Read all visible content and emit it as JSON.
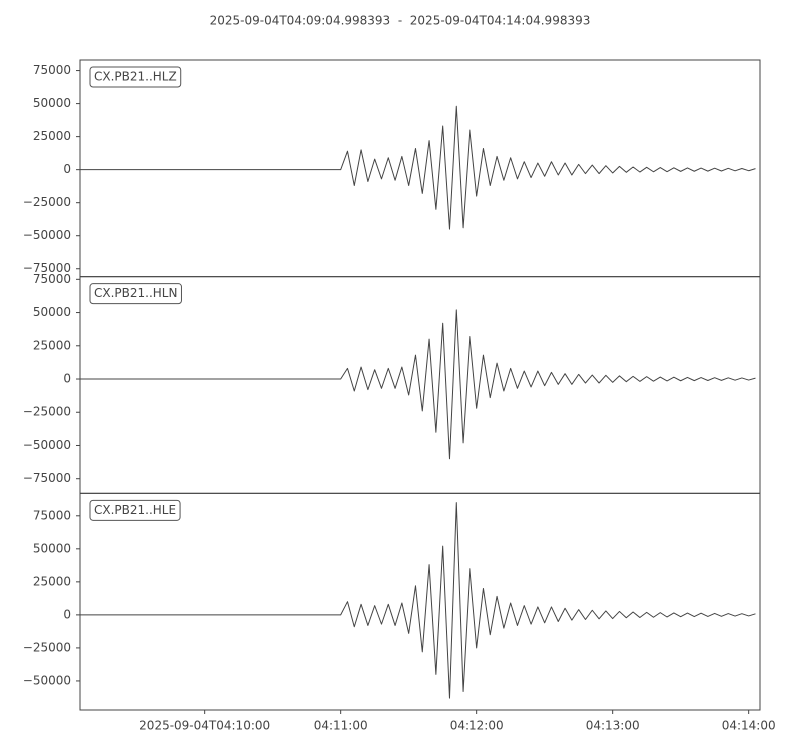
{
  "chart_data": [
    {
      "type": "line",
      "title": "2025-09-04T04:09:04.998393  -  2025-09-04T04:14:04.998393",
      "label": "CX.PB21..HLZ",
      "xlim": [
        "2025-09-04T04:09:04.998393",
        "2025-09-04T04:14:04.998393"
      ],
      "ylim": [
        -81000,
        83000
      ],
      "yticks": [
        {
          "value": -75000,
          "label": "−75000"
        },
        {
          "value": -50000,
          "label": "−50000"
        },
        {
          "value": -25000,
          "label": "−25000"
        },
        0,
        25000,
        50000,
        75000
      ],
      "color": "#444444",
      "x": [
        "04:09:05",
        "04:11:00",
        "04:11:03",
        "04:11:06",
        "04:11:09",
        "04:11:12",
        "04:11:15",
        "04:11:18",
        "04:11:21",
        "04:11:24",
        "04:11:27",
        "04:11:30",
        "04:11:33",
        "04:11:36",
        "04:11:39",
        "04:11:42",
        "04:11:45",
        "04:11:48",
        "04:11:51",
        "04:11:54",
        "04:11:57",
        "04:12:00",
        "04:12:03",
        "04:12:06",
        "04:12:09",
        "04:12:12",
        "04:12:15",
        "04:12:18",
        "04:12:21",
        "04:12:24",
        "04:12:27",
        "04:12:30",
        "04:12:33",
        "04:12:36",
        "04:12:39",
        "04:12:42",
        "04:12:45",
        "04:12:48",
        "04:12:51",
        "04:12:54",
        "04:12:57",
        "04:13:00",
        "04:13:03",
        "04:13:06",
        "04:13:09",
        "04:13:12",
        "04:13:15",
        "04:13:18",
        "04:13:21",
        "04:13:24",
        "04:13:27",
        "04:13:30",
        "04:13:33",
        "04:13:36",
        "04:13:39",
        "04:13:42",
        "04:13:45",
        "04:13:48",
        "04:13:51",
        "04:13:54",
        "04:13:57",
        "04:14:00",
        "04:14:03"
      ],
      "values": [
        0,
        0,
        14000,
        -12000,
        15000,
        -9000,
        8000,
        -7000,
        9000,
        -8000,
        10000,
        -12000,
        16000,
        -18000,
        22000,
        -30000,
        33000,
        -45000,
        48000,
        -44000,
        30000,
        -20000,
        16000,
        -12000,
        10000,
        -8000,
        9000,
        -7000,
        6000,
        -6000,
        5000,
        -5000,
        6000,
        -4000,
        5000,
        -4000,
        4000,
        -3000,
        3500,
        -3000,
        3000,
        -2500,
        2500,
        -2000,
        2000,
        -1800,
        1800,
        -1600,
        1600,
        -1500,
        1400,
        -1300,
        1300,
        -1200,
        1200,
        -1100,
        1100,
        -1000,
        1000,
        -900,
        900,
        -800,
        800
      ]
    },
    {
      "type": "line",
      "label": "CX.PB21..HLN",
      "xlim": [
        "2025-09-04T04:09:04.998393",
        "2025-09-04T04:14:04.998393"
      ],
      "ylim": [
        -86000,
        77000
      ],
      "yticks": [
        {
          "value": -75000,
          "label": "−75000"
        },
        {
          "value": -50000,
          "label": "−50000"
        },
        {
          "value": -25000,
          "label": "−25000"
        },
        0,
        25000,
        50000,
        75000
      ],
      "color": "#444444",
      "x": [
        "04:09:05",
        "04:11:00",
        "04:11:03",
        "04:11:06",
        "04:11:09",
        "04:11:12",
        "04:11:15",
        "04:11:18",
        "04:11:21",
        "04:11:24",
        "04:11:27",
        "04:11:30",
        "04:11:33",
        "04:11:36",
        "04:11:39",
        "04:11:42",
        "04:11:45",
        "04:11:48",
        "04:11:51",
        "04:11:54",
        "04:11:57",
        "04:12:00",
        "04:12:03",
        "04:12:06",
        "04:12:09",
        "04:12:12",
        "04:12:15",
        "04:12:18",
        "04:12:21",
        "04:12:24",
        "04:12:27",
        "04:12:30",
        "04:12:33",
        "04:12:36",
        "04:12:39",
        "04:12:42",
        "04:12:45",
        "04:12:48",
        "04:12:51",
        "04:12:54",
        "04:12:57",
        "04:13:00",
        "04:13:03",
        "04:13:06",
        "04:13:09",
        "04:13:12",
        "04:13:15",
        "04:13:18",
        "04:13:21",
        "04:13:24",
        "04:13:27",
        "04:13:30",
        "04:13:33",
        "04:13:36",
        "04:13:39",
        "04:13:42",
        "04:13:45",
        "04:13:48",
        "04:13:51",
        "04:13:54",
        "04:13:57",
        "04:14:00",
        "04:14:03"
      ],
      "values": [
        0,
        0,
        8000,
        -9000,
        9000,
        -8000,
        7000,
        -7000,
        8000,
        -7000,
        9000,
        -12000,
        18000,
        -24000,
        30000,
        -40000,
        42000,
        -60000,
        52000,
        -48000,
        32000,
        -22000,
        18000,
        -14000,
        12000,
        -9000,
        8000,
        -7000,
        6000,
        -6000,
        6000,
        -5000,
        5000,
        -4000,
        4000,
        -4000,
        3500,
        -3000,
        3000,
        -3000,
        2800,
        -2500,
        2400,
        -2000,
        2000,
        -1800,
        1800,
        -1600,
        1500,
        -1400,
        1400,
        -1300,
        1200,
        -1200,
        1100,
        -1100,
        1000,
        -1000,
        900,
        -900,
        800,
        -800,
        700
      ]
    },
    {
      "type": "line",
      "label": "CX.PB21..HLE",
      "xlim": [
        "2025-09-04T04:09:04.998393",
        "2025-09-04T04:14:04.998393"
      ],
      "ylim": [
        -72000,
        92000
      ],
      "yticks": [
        {
          "value": -50000,
          "label": "−50000"
        },
        {
          "value": -25000,
          "label": "−25000"
        },
        0,
        25000,
        50000,
        75000
      ],
      "xticks": [
        "2025-09-04T04:10:00",
        "04:11:00",
        "04:12:00",
        "04:13:00",
        "04:14:00"
      ],
      "color": "#444444",
      "x": [
        "04:09:05",
        "04:11:00",
        "04:11:03",
        "04:11:06",
        "04:11:09",
        "04:11:12",
        "04:11:15",
        "04:11:18",
        "04:11:21",
        "04:11:24",
        "04:11:27",
        "04:11:30",
        "04:11:33",
        "04:11:36",
        "04:11:39",
        "04:11:42",
        "04:11:45",
        "04:11:48",
        "04:11:51",
        "04:11:54",
        "04:11:57",
        "04:12:00",
        "04:12:03",
        "04:12:06",
        "04:12:09",
        "04:12:12",
        "04:12:15",
        "04:12:18",
        "04:12:21",
        "04:12:24",
        "04:12:27",
        "04:12:30",
        "04:12:33",
        "04:12:36",
        "04:12:39",
        "04:12:42",
        "04:12:45",
        "04:12:48",
        "04:12:51",
        "04:12:54",
        "04:12:57",
        "04:13:00",
        "04:13:03",
        "04:13:06",
        "04:13:09",
        "04:13:12",
        "04:13:15",
        "04:13:18",
        "04:13:21",
        "04:13:24",
        "04:13:27",
        "04:13:30",
        "04:13:33",
        "04:13:36",
        "04:13:39",
        "04:13:42",
        "04:13:45",
        "04:13:48",
        "04:13:51",
        "04:13:54",
        "04:13:57",
        "04:14:00",
        "04:14:03"
      ],
      "values": [
        0,
        0,
        10000,
        -9000,
        8000,
        -8000,
        7000,
        -7000,
        8000,
        -8000,
        9000,
        -14000,
        22000,
        -28000,
        38000,
        -45000,
        52000,
        -63000,
        85000,
        -58000,
        35000,
        -25000,
        20000,
        -15000,
        14000,
        -10000,
        9000,
        -8000,
        7000,
        -7000,
        6000,
        -6000,
        6000,
        -5000,
        5000,
        -4000,
        4000,
        -3500,
        3500,
        -3000,
        3000,
        -2800,
        2600,
        -2200,
        2200,
        -2000,
        1900,
        -1800,
        1700,
        -1600,
        1500,
        -1400,
        1400,
        -1300,
        1300,
        -1200,
        1100,
        -1100,
        1000,
        -900,
        900,
        -800,
        800
      ]
    }
  ]
}
